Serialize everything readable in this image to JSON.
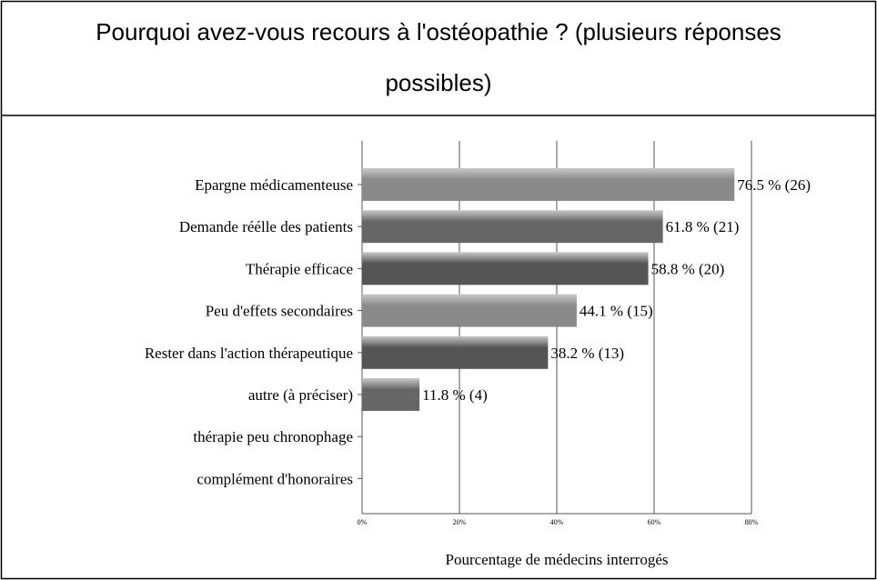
{
  "chart_data": {
    "type": "bar",
    "orientation": "horizontal",
    "title": "Pourquoi avez-vous recours à l'ostéopathie ? (plusieurs réponses possibles)",
    "xlabel": "Pourcentage de médecins interrogés",
    "categories": [
      "Epargne médicamenteuse",
      "Demande réélle des patients",
      "Thérapie efficace",
      "Peu d'effets secondaires",
      "Rester dans l'action thérapeutique",
      "autre (à préciser)",
      "thérapie peu chronophage",
      "complément d'honoraires"
    ],
    "values": [
      76.5,
      61.8,
      58.8,
      44.1,
      38.2,
      11.8,
      0,
      0
    ],
    "value_labels": [
      "76.5 % (26)",
      "61.8 % (21)",
      "58.8 % (20)",
      "44.1 % (15)",
      "38.2 % (13)",
      "11.8 % (4)",
      null,
      null
    ],
    "colors": [
      "#8a8a8a",
      "#666666",
      "#555555",
      "#8a8a8a",
      "#555555",
      "#666666",
      "#666666",
      "#666666"
    ],
    "xlim": [
      0,
      80
    ],
    "xticks": [
      {
        "value": 0,
        "label": "0%"
      },
      {
        "value": 20,
        "label": "20%"
      },
      {
        "value": 40,
        "label": "40%"
      },
      {
        "value": 60,
        "label": "60%"
      },
      {
        "value": 80,
        "label": "80%"
      }
    ],
    "grid": true
  }
}
